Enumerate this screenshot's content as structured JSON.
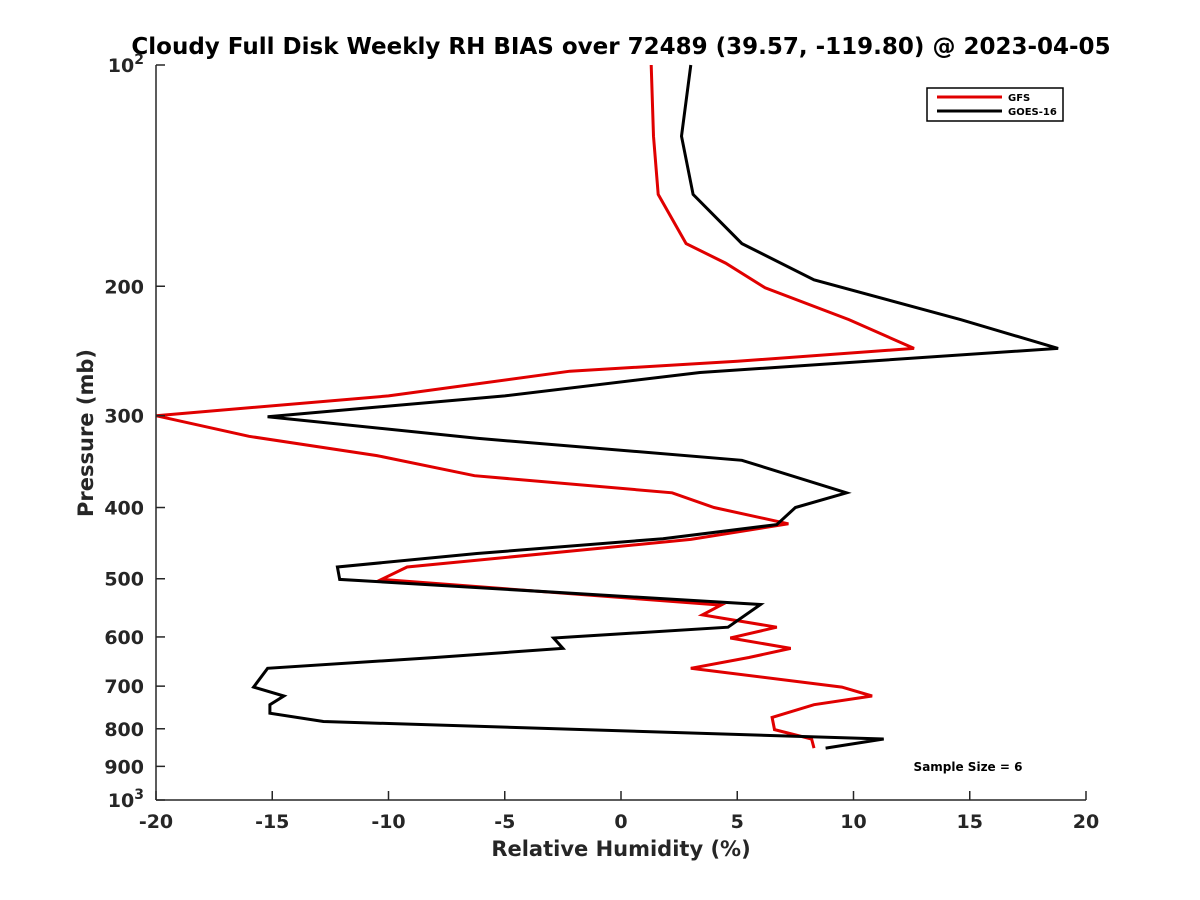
{
  "chart_data": {
    "type": "line",
    "title": "Cloudy Full Disk Weekly RH BIAS over 72489 (39.57, -119.80) @ 2023-04-05",
    "xlabel": "Relative Humidity (%)",
    "ylabel": "Pressure (mb)",
    "xlim": [
      -20,
      20
    ],
    "ylim": [
      100,
      1000
    ],
    "y_scale": "log",
    "y_reversed": true,
    "grid": false,
    "legend_position": "top-right",
    "x_ticks": [
      "-20",
      "-15",
      "-10",
      "-5",
      "0",
      "5",
      "10",
      "15",
      "20"
    ],
    "y_ticks": [
      {
        "value": 100,
        "base": "10",
        "exp": "2"
      },
      {
        "value": 200,
        "label": "200"
      },
      {
        "value": 300,
        "label": "300"
      },
      {
        "value": 400,
        "label": "400"
      },
      {
        "value": 500,
        "label": "500"
      },
      {
        "value": 600,
        "label": "600"
      },
      {
        "value": 700,
        "label": "700"
      },
      {
        "value": 800,
        "label": "800"
      },
      {
        "value": 900,
        "label": "900"
      },
      {
        "value": 1000,
        "base": "10",
        "exp": "3"
      }
    ],
    "annotation": "Sample Size = 6",
    "series": [
      {
        "name": "GFS",
        "color": "#e00000",
        "points": [
          [
            1.3,
            100
          ],
          [
            1.4,
            125
          ],
          [
            1.6,
            150
          ],
          [
            2.8,
            175
          ],
          [
            4.5,
            186
          ],
          [
            6.2,
            201
          ],
          [
            9.8,
            222
          ],
          [
            12.6,
            243
          ],
          [
            5.0,
            253
          ],
          [
            -2.2,
            261
          ],
          [
            -10.0,
            282
          ],
          [
            -20.0,
            300
          ],
          [
            -16.0,
            320
          ],
          [
            -10.5,
            340
          ],
          [
            -6.3,
            362
          ],
          [
            2.2,
            382
          ],
          [
            4.0,
            400
          ],
          [
            7.2,
            421
          ],
          [
            3.0,
            442
          ],
          [
            -9.2,
            482
          ],
          [
            -10.3,
            501
          ],
          [
            4.3,
            543
          ],
          [
            3.5,
            560
          ],
          [
            6.7,
            582
          ],
          [
            4.7,
            602
          ],
          [
            7.3,
            622
          ],
          [
            5.5,
            640
          ],
          [
            3.0,
            662
          ],
          [
            9.5,
            702
          ],
          [
            10.8,
            722
          ],
          [
            8.3,
            742
          ],
          [
            6.5,
            772
          ],
          [
            6.6,
            802
          ],
          [
            8.2,
            826
          ],
          [
            8.3,
            850
          ]
        ]
      },
      {
        "name": "GOES-16",
        "color": "#000000",
        "points": [
          [
            3.0,
            100
          ],
          [
            2.6,
            125
          ],
          [
            3.1,
            150
          ],
          [
            5.2,
            175
          ],
          [
            8.3,
            196
          ],
          [
            14.6,
            222
          ],
          [
            18.8,
            243
          ],
          [
            3.4,
            262
          ],
          [
            -5.0,
            282
          ],
          [
            -15.2,
            301
          ],
          [
            -6.2,
            322
          ],
          [
            5.2,
            345
          ],
          [
            9.7,
            382
          ],
          [
            7.5,
            400
          ],
          [
            6.7,
            422
          ],
          [
            1.8,
            441
          ],
          [
            -6.2,
            462
          ],
          [
            -12.2,
            482
          ],
          [
            -12.1,
            501
          ],
          [
            6.0,
            542
          ],
          [
            4.6,
            582
          ],
          [
            -2.9,
            602
          ],
          [
            -2.5,
            622
          ],
          [
            -8.0,
            640
          ],
          [
            -15.2,
            662
          ],
          [
            -15.8,
            702
          ],
          [
            -14.5,
            722
          ],
          [
            -15.1,
            742
          ],
          [
            -15.1,
            762
          ],
          [
            -12.8,
            782
          ],
          [
            11.3,
            826
          ],
          [
            8.8,
            850
          ]
        ]
      }
    ]
  }
}
